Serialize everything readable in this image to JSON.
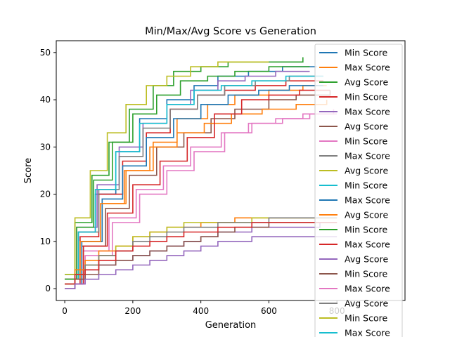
{
  "chart_data": {
    "type": "line",
    "title": "Min/Max/Avg Score vs Generation",
    "xlabel": "Generation",
    "ylabel": "Score",
    "xlim": [
      -25,
      1000
    ],
    "ylim": [
      -2.5,
      52.5
    ],
    "xticks": [
      0,
      200,
      400,
      600,
      800
    ],
    "yticks": [
      0,
      10,
      20,
      30,
      40,
      50
    ],
    "grid": false,
    "legend_position": "right (clipped at bottom)",
    "palette": [
      "#1f77b4",
      "#ff7f0e",
      "#2ca02c",
      "#d62728",
      "#9467bd",
      "#8c564b",
      "#e377c2",
      "#7f7f7f",
      "#bcbd22",
      "#17becf"
    ],
    "legend_entries": [
      "Min Score",
      "Max Score",
      "Avg Score",
      "Min Score",
      "Max Score",
      "Avg Score",
      "Min Score",
      "Max Score",
      "Avg Score",
      "Min Score",
      "Max Score",
      "Avg Score",
      "Min Score",
      "Max Score",
      "Avg Score",
      "Min Score",
      "Max Score",
      "Avg Score",
      "Min Score",
      "Max Score"
    ],
    "series": [
      {
        "name": "Max Score",
        "color": "#1f77b4",
        "x": [
          0,
          40,
          90,
          150,
          220,
          300,
          380,
          450,
          540,
          640,
          740
        ],
        "y": [
          2,
          12,
          20,
          29,
          36,
          40,
          43,
          45,
          46,
          47,
          47
        ]
      },
      {
        "name": "Max Score",
        "color": "#ff7f0e",
        "x": [
          0,
          50,
          110,
          180,
          260,
          330,
          420,
          500,
          600,
          700,
          770
        ],
        "y": [
          2,
          10,
          18,
          25,
          31,
          36,
          39,
          41,
          42,
          43,
          43
        ]
      },
      {
        "name": "Max Score",
        "color": "#2ca02c",
        "x": [
          0,
          30,
          80,
          130,
          190,
          260,
          320,
          400,
          480,
          560,
          700
        ],
        "y": [
          3,
          14,
          24,
          31,
          38,
          43,
          46,
          47,
          48,
          48,
          49
        ]
      },
      {
        "name": "Max Score",
        "color": "#d62728",
        "x": [
          0,
          45,
          100,
          170,
          240,
          310,
          390,
          470,
          560,
          650,
          760
        ],
        "y": [
          1,
          11,
          20,
          27,
          33,
          38,
          41,
          42,
          43,
          44,
          44
        ]
      },
      {
        "name": "Max Score",
        "color": "#9467bd",
        "x": [
          0,
          35,
          95,
          160,
          230,
          300,
          370,
          450,
          530,
          620,
          720
        ],
        "y": [
          2,
          13,
          22,
          30,
          35,
          39,
          42,
          44,
          45,
          46,
          46
        ]
      },
      {
        "name": "Max Score",
        "color": "#8c564b",
        "x": [
          0,
          50,
          120,
          190,
          270,
          350,
          430,
          500,
          600,
          680,
          780
        ],
        "y": [
          1,
          9,
          17,
          24,
          30,
          33,
          36,
          38,
          40,
          41,
          42
        ]
      },
      {
        "name": "Max Score",
        "color": "#e377c2",
        "x": [
          0,
          55,
          130,
          210,
          290,
          370,
          460,
          540,
          620,
          700,
          790
        ],
        "y": [
          1,
          8,
          15,
          21,
          26,
          30,
          33,
          35,
          36,
          37,
          38
        ]
      },
      {
        "name": "Max Score",
        "color": "#7f7f7f",
        "x": [
          0,
          40,
          100,
          160,
          230,
          310,
          390,
          470,
          560,
          660,
          760
        ],
        "y": [
          2,
          12,
          21,
          28,
          34,
          38,
          41,
          43,
          44,
          45,
          45
        ]
      },
      {
        "name": "Max Score",
        "color": "#bcbd22",
        "x": [
          0,
          30,
          75,
          125,
          180,
          240,
          300,
          370,
          450,
          520,
          600
        ],
        "y": [
          3,
          15,
          25,
          33,
          39,
          43,
          45,
          47,
          48,
          48,
          48
        ]
      },
      {
        "name": "Max Score",
        "color": "#17becf",
        "x": [
          0,
          40,
          90,
          150,
          220,
          300,
          380,
          460,
          550,
          650,
          760
        ],
        "y": [
          2,
          12,
          21,
          29,
          35,
          39,
          42,
          43,
          44,
          45,
          45
        ]
      },
      {
        "name": "Max Score",
        "color": "#1f77b4",
        "x": [
          0,
          50,
          110,
          170,
          240,
          320,
          400,
          480,
          570,
          660,
          760
        ],
        "y": [
          1,
          10,
          19,
          26,
          32,
          36,
          39,
          41,
          42,
          43,
          43
        ]
      },
      {
        "name": "Max Score",
        "color": "#ff7f0e",
        "x": [
          0,
          45,
          105,
          175,
          250,
          330,
          410,
          490,
          580,
          680,
          770
        ],
        "y": [
          2,
          10,
          18,
          25,
          30,
          33,
          35,
          37,
          38,
          39,
          40
        ]
      },
      {
        "name": "Max Score",
        "color": "#2ca02c",
        "x": [
          0,
          35,
          85,
          140,
          200,
          270,
          340,
          420,
          500,
          600,
          720
        ],
        "y": [
          2,
          13,
          23,
          31,
          37,
          41,
          44,
          45,
          46,
          47,
          47
        ]
      },
      {
        "name": "Max Score",
        "color": "#d62728",
        "x": [
          0,
          55,
          125,
          200,
          280,
          360,
          440,
          520,
          600,
          690,
          780
        ],
        "y": [
          1,
          9,
          16,
          22,
          27,
          32,
          37,
          40,
          41,
          42,
          42
        ]
      },
      {
        "name": "Max Score",
        "color": "#e377c2",
        "x": [
          0,
          60,
          140,
          220,
          300,
          380,
          470,
          550,
          640,
          720,
          800
        ],
        "y": [
          1,
          7,
          14,
          20,
          25,
          29,
          33,
          35,
          36,
          37,
          37
        ]
      },
      {
        "name": "Avg Score",
        "color": "#ff7f0e",
        "x": [
          0,
          30,
          60,
          100,
          150,
          200,
          250,
          300,
          350,
          400,
          450,
          500,
          550,
          600,
          650,
          700,
          750,
          800
        ],
        "y": [
          1,
          4,
          6,
          8,
          9,
          11,
          12,
          13,
          13,
          14,
          14,
          15,
          15,
          15,
          15,
          15,
          15,
          15
        ]
      },
      {
        "name": "Avg Score",
        "color": "#9467bd",
        "x": [
          0,
          30,
          60,
          100,
          150,
          200,
          250,
          300,
          350,
          400,
          450,
          500,
          550,
          600,
          650,
          700,
          750,
          800
        ],
        "y": [
          0,
          2,
          4,
          5,
          6,
          7,
          8,
          9,
          10,
          11,
          12,
          12,
          13,
          13,
          13,
          13,
          14,
          14
        ]
      },
      {
        "name": "Avg Score",
        "color": "#bcbd22",
        "x": [
          0,
          30,
          60,
          100,
          150,
          200,
          250,
          300,
          350,
          400,
          450,
          500,
          550,
          600,
          650,
          700,
          750,
          800
        ],
        "y": [
          1,
          3,
          5,
          7,
          9,
          11,
          12,
          13,
          14,
          14,
          14,
          14,
          15,
          15,
          15,
          15,
          15,
          15
        ]
      },
      {
        "name": "Avg Score",
        "color": "#8c564b",
        "x": [
          0,
          30,
          60,
          100,
          150,
          200,
          250,
          300,
          350,
          400,
          450,
          500,
          550,
          600,
          650,
          700,
          750,
          800
        ],
        "y": [
          0,
          2,
          3,
          5,
          6,
          7,
          8,
          9,
          10,
          11,
          12,
          13,
          13,
          14,
          14,
          14,
          14,
          14
        ]
      },
      {
        "name": "Avg Score",
        "color": "#7f7f7f",
        "x": [
          0,
          30,
          60,
          100,
          150,
          200,
          250,
          300,
          350,
          400,
          450,
          500,
          550,
          600,
          650,
          700,
          750,
          800
        ],
        "y": [
          1,
          3,
          5,
          7,
          8,
          10,
          11,
          12,
          13,
          13,
          14,
          14,
          14,
          15,
          15,
          15,
          15,
          15
        ]
      },
      {
        "name": "Avg Score",
        "color": "#d62728",
        "x": [
          0,
          30,
          60,
          100,
          150,
          200,
          250,
          300,
          350,
          400,
          450,
          500,
          550,
          600,
          650,
          700,
          750,
          800
        ],
        "y": [
          1,
          3,
          4,
          6,
          8,
          9,
          10,
          11,
          12,
          12,
          13,
          13,
          14,
          14,
          14,
          14,
          14,
          14
        ]
      },
      {
        "name": "Min Score",
        "color": "#9467bd",
        "x": [
          0,
          30,
          60,
          100,
          150,
          200,
          250,
          300,
          350,
          400,
          450,
          500,
          550,
          600,
          650,
          700,
          750,
          800
        ],
        "y": [
          0,
          1,
          2,
          3,
          4,
          5,
          6,
          7,
          8,
          9,
          10,
          10,
          11,
          11,
          11,
          11,
          11,
          11
        ]
      }
    ]
  }
}
